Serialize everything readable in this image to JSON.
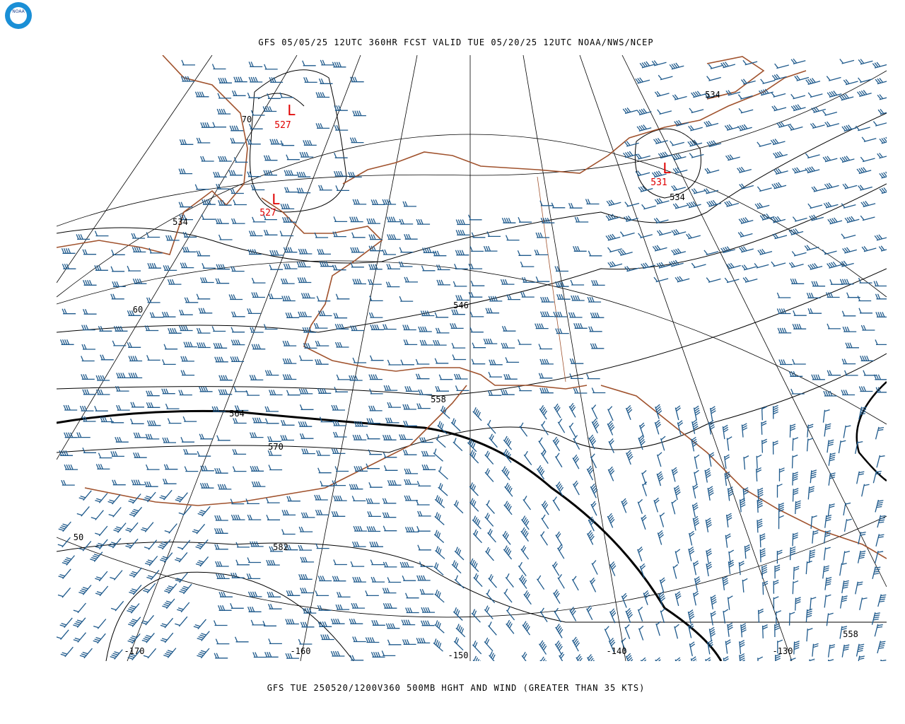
{
  "header": {
    "title": "GFS 05/05/25 12UTC 360HR FCST VALID TUE 05/20/25 12UTC NOAA/NWS/NCEP"
  },
  "footer": {
    "caption": "GFS TUE 250520/1200V360 500MB HGHT AND WIND (GREATER THAN 35 KTS)"
  },
  "logo": {
    "text": "NOAA"
  },
  "lows": [
    {
      "symbol": "L",
      "value": "527"
    },
    {
      "symbol": "L",
      "value": "527"
    },
    {
      "symbol": "L",
      "value": "531"
    }
  ],
  "contour_labels": [
    "534",
    "534",
    "534",
    "546",
    "558",
    "564",
    "570",
    "582",
    "558"
  ],
  "lat_labels": [
    "70",
    "60",
    "50"
  ],
  "lon_labels": [
    "-170",
    "-160",
    "-150",
    "-140",
    "-130"
  ]
}
